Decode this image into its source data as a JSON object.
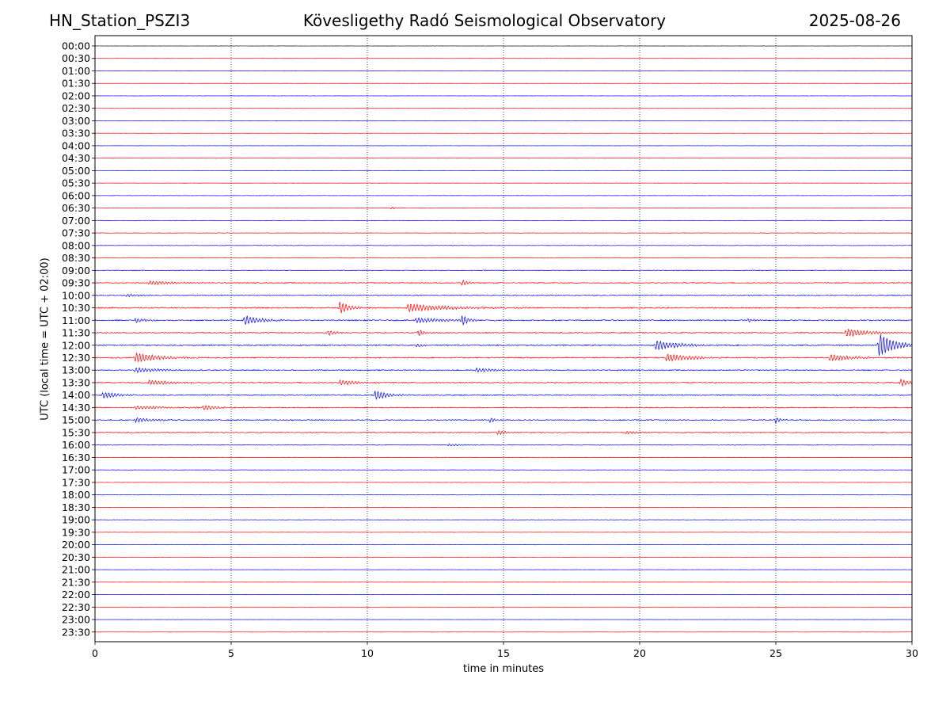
{
  "header": {
    "station": "HN_Station_PSZI3",
    "title": "Kövesligethy Radó Seismological Observatory",
    "date": "2025-08-26"
  },
  "chart_data": {
    "type": "line",
    "xlabel": "time in minutes",
    "ylabel": "UTC (local time = UTC + 02:00)",
    "xlim": [
      0,
      30
    ],
    "x_ticks": [
      "0",
      "5",
      "10",
      "15",
      "20",
      "25",
      "30"
    ],
    "grid": "vertical dotted lines at 5, 10, 15, 20, 25",
    "trace_colors": {
      "full_hour": "#0000ff",
      "half_hour": "#ff0000",
      "first_trace": "#000000"
    },
    "rows": [
      "00:00",
      "00:30",
      "01:00",
      "01:30",
      "02:00",
      "02:30",
      "03:00",
      "03:30",
      "04:00",
      "04:30",
      "05:00",
      "05:30",
      "06:00",
      "06:30",
      "07:00",
      "07:30",
      "08:00",
      "08:30",
      "09:00",
      "09:30",
      "10:00",
      "10:30",
      "11:00",
      "11:30",
      "12:00",
      "12:30",
      "13:00",
      "13:30",
      "14:00",
      "14:30",
      "15:00",
      "15:30",
      "16:00",
      "16:30",
      "17:00",
      "17:30",
      "18:00",
      "18:30",
      "19:00",
      "19:30",
      "20:00",
      "20:30",
      "21:00",
      "21:30",
      "22:00",
      "22:30",
      "23:00",
      "23:30"
    ],
    "noise_level": [
      0.2,
      0.2,
      0.2,
      0.2,
      0.2,
      0.2,
      0.3,
      0.2,
      0.2,
      0.2,
      0.3,
      0.3,
      0.3,
      0.4,
      0.5,
      0.5,
      0.5,
      0.6,
      0.8,
      1.0,
      1.0,
      1.4,
      1.4,
      1.2,
      1.4,
      1.4,
      1.2,
      1.2,
      1.2,
      1.2,
      1.2,
      1.0,
      0.7,
      0.6,
      0.4,
      0.4,
      0.4,
      0.4,
      0.4,
      0.3,
      0.3,
      0.3,
      0.2,
      0.2,
      0.2,
      0.2,
      0.2,
      0.2
    ],
    "events": [
      {
        "row": 13,
        "t": 10.9,
        "amp": 2,
        "dur": 0.2
      },
      {
        "row": 19,
        "t": 2.0,
        "amp": 2.5,
        "dur": 1.5
      },
      {
        "row": 19,
        "t": 13.5,
        "amp": 4,
        "dur": 0.3
      },
      {
        "row": 20,
        "t": 1.2,
        "amp": 2,
        "dur": 0.8
      },
      {
        "row": 21,
        "t": 9.0,
        "amp": 8,
        "dur": 0.6
      },
      {
        "row": 21,
        "t": 11.5,
        "amp": 5,
        "dur": 2.5
      },
      {
        "row": 22,
        "t": 1.5,
        "amp": 3,
        "dur": 0.5
      },
      {
        "row": 22,
        "t": 5.5,
        "amp": 6,
        "dur": 1.0
      },
      {
        "row": 22,
        "t": 11.8,
        "amp": 3,
        "dur": 2.0
      },
      {
        "row": 22,
        "t": 13.5,
        "amp": 7,
        "dur": 0.3
      },
      {
        "row": 22,
        "t": 24.0,
        "amp": 3,
        "dur": 0.3
      },
      {
        "row": 23,
        "t": 8.6,
        "amp": 3,
        "dur": 0.6
      },
      {
        "row": 23,
        "t": 11.9,
        "amp": 4,
        "dur": 0.4
      },
      {
        "row": 23,
        "t": 27.6,
        "amp": 5,
        "dur": 1.5
      },
      {
        "row": 24,
        "t": 20.6,
        "amp": 6,
        "dur": 1.5
      },
      {
        "row": 24,
        "t": 28.8,
        "amp": 15,
        "dur": 1.0
      },
      {
        "row": 24,
        "t": 11.8,
        "amp": 2,
        "dur": 0.5
      },
      {
        "row": 25,
        "t": 1.5,
        "amp": 6,
        "dur": 1.5
      },
      {
        "row": 25,
        "t": 21.0,
        "amp": 5,
        "dur": 1.5
      },
      {
        "row": 25,
        "t": 27.0,
        "amp": 4,
        "dur": 1.5
      },
      {
        "row": 26,
        "t": 1.5,
        "amp": 3,
        "dur": 1.5
      },
      {
        "row": 26,
        "t": 14.0,
        "amp": 3,
        "dur": 1.0
      },
      {
        "row": 27,
        "t": 2.0,
        "amp": 3,
        "dur": 1.5
      },
      {
        "row": 27,
        "t": 9.0,
        "amp": 3,
        "dur": 1.5
      },
      {
        "row": 27,
        "t": 29.6,
        "amp": 5,
        "dur": 0.4
      },
      {
        "row": 28,
        "t": 0.3,
        "amp": 4,
        "dur": 1.0
      },
      {
        "row": 28,
        "t": 10.3,
        "amp": 6,
        "dur": 0.8
      },
      {
        "row": 29,
        "t": 4.0,
        "amp": 3,
        "dur": 0.8
      },
      {
        "row": 29,
        "t": 1.5,
        "amp": 2,
        "dur": 2.0
      },
      {
        "row": 30,
        "t": 1.5,
        "amp": 3,
        "dur": 1.0
      },
      {
        "row": 30,
        "t": 14.5,
        "amp": 3,
        "dur": 0.5
      },
      {
        "row": 30,
        "t": 25.0,
        "amp": 4,
        "dur": 0.3
      },
      {
        "row": 31,
        "t": 14.8,
        "amp": 3,
        "dur": 0.6
      },
      {
        "row": 31,
        "t": 19.5,
        "amp": 2,
        "dur": 0.8
      },
      {
        "row": 32,
        "t": 13.0,
        "amp": 1.5,
        "dur": 0.8
      }
    ]
  }
}
